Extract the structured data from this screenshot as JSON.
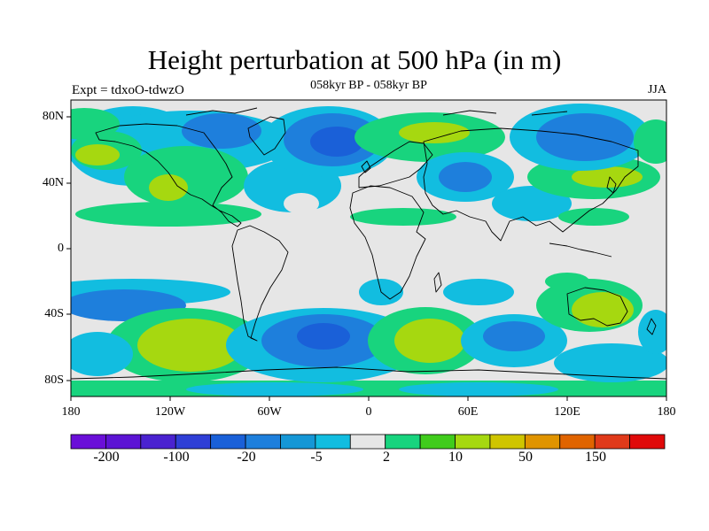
{
  "title": "Height perturbation at 500 hPa (in m)",
  "subtitle": "058kyr BP - 058kyr BP",
  "experiment_label": "Expt = tdxoO-tdwzO",
  "season": "JJA",
  "lat_labels": [
    "80N",
    "40N",
    "0",
    "40S",
    "80S"
  ],
  "lon_labels": [
    "180",
    "120W",
    "60W",
    "0",
    "60E",
    "120E",
    "180"
  ],
  "colorbar": {
    "colors": [
      "#6a0fd8",
      "#5c14d4",
      "#4a22d0",
      "#2f3fd6",
      "#1a60d8",
      "#1e7fdc",
      "#1597d6",
      "#12bde0",
      "#e6e6e6",
      "#18d47e",
      "#40cc1c",
      "#a6d810",
      "#cfc500",
      "#e09400",
      "#e06400",
      "#e03a1a",
      "#e00a0a"
    ],
    "labels": [
      "-200",
      "-100",
      "-20",
      "-5",
      "2",
      "10",
      "50",
      "150"
    ]
  },
  "colors": {
    "neutral": "#e6e6e6",
    "neg_cyan": "#12bde0",
    "neg_blue": "#1e7fdc",
    "neg_deep": "#1a60d8",
    "pos_green": "#18d47e",
    "pos_bright": "#40cc1c",
    "pos_lime": "#a6d810"
  }
}
